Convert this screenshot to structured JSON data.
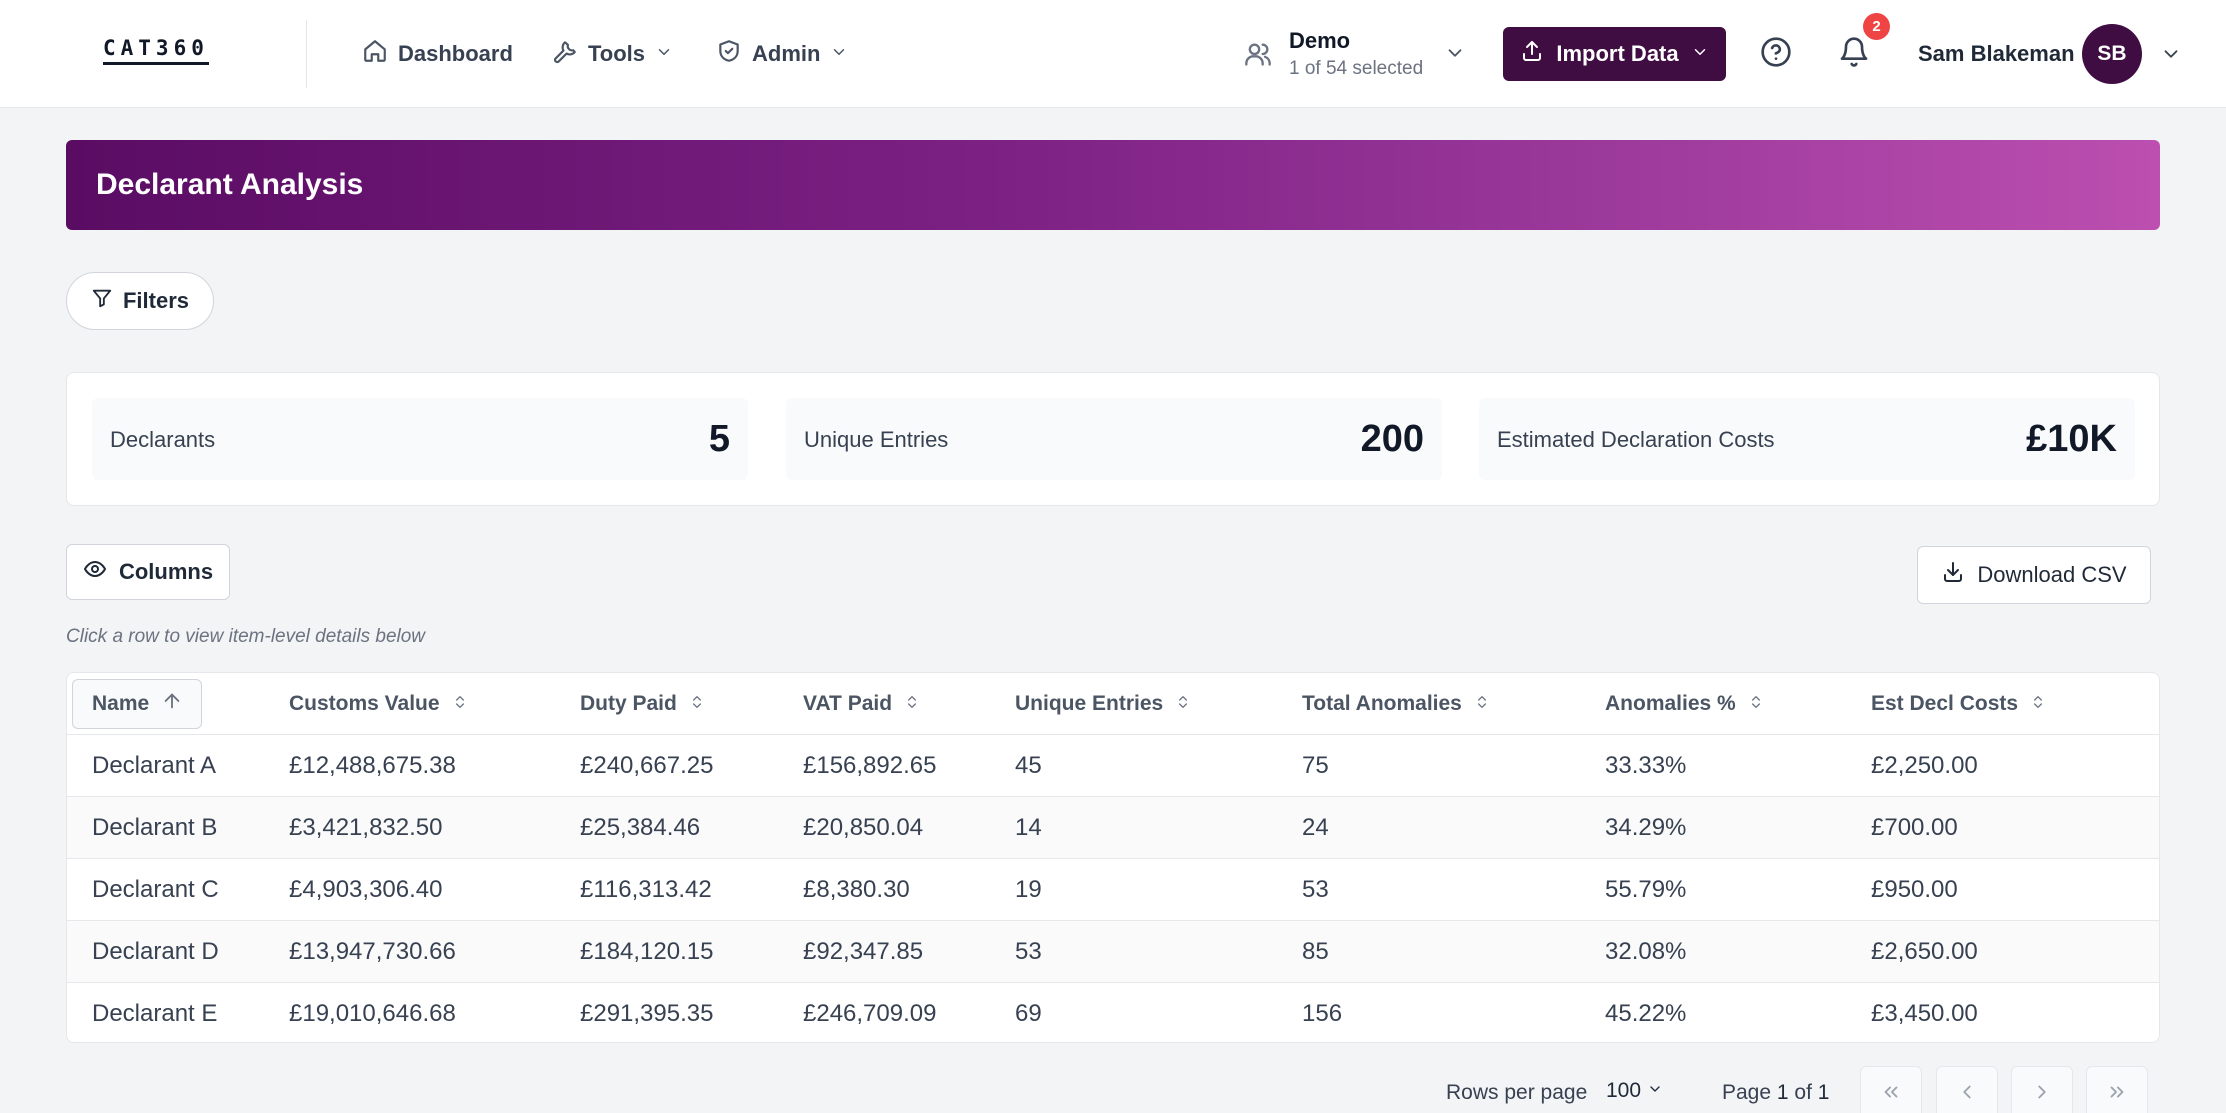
{
  "app": {
    "logo": "CAT360"
  },
  "nav": {
    "dashboard": "Dashboard",
    "tools": "Tools",
    "admin": "Admin"
  },
  "dataset": {
    "name": "Demo",
    "selection": "1 of 54 selected"
  },
  "header": {
    "import_label": "Import Data",
    "notification_count": "2",
    "user_name": "Sam Blakeman",
    "user_initials": "SB"
  },
  "page": {
    "title": "Declarant Analysis",
    "filters_label": "Filters",
    "columns_label": "Columns",
    "download_label": "Download CSV",
    "hint": "Click a row to view item-level details below"
  },
  "stats": [
    {
      "label": "Declarants",
      "value": "5"
    },
    {
      "label": "Unique Entries",
      "value": "200"
    },
    {
      "label": "Estimated Declaration Costs",
      "value": "£10K"
    }
  ],
  "table": {
    "sorted_column": "Name",
    "sort_direction": "ascending",
    "columns": [
      "Name",
      "Customs Value",
      "Duty Paid",
      "VAT Paid",
      "Unique Entries",
      "Total Anomalies",
      "Anomalies %",
      "Est Decl Costs"
    ],
    "rows": [
      [
        "Declarant A",
        "£12,488,675.38",
        "£240,667.25",
        "£156,892.65",
        "45",
        "75",
        "33.33%",
        "£2,250.00"
      ],
      [
        "Declarant B",
        "£3,421,832.50",
        "£25,384.46",
        "£20,850.04",
        "14",
        "24",
        "34.29%",
        "£700.00"
      ],
      [
        "Declarant C",
        "£4,903,306.40",
        "£116,313.42",
        "£8,380.30",
        "19",
        "53",
        "55.79%",
        "£950.00"
      ],
      [
        "Declarant D",
        "£13,947,730.66",
        "£184,120.15",
        "£92,347.85",
        "53",
        "85",
        "32.08%",
        "£2,650.00"
      ],
      [
        "Declarant E",
        "£19,010,646.68",
        "£291,395.35",
        "£246,709.09",
        "69",
        "156",
        "45.22%",
        "£3,450.00"
      ]
    ]
  },
  "pagination": {
    "rows_per_page_label": "Rows per page",
    "rows_per_page": "100",
    "page_word": "Page",
    "current_page": "1",
    "of_word": "of",
    "total_pages": "1"
  },
  "colors": {
    "brand_dark": "#3f0d42",
    "banner_start": "#5a0c63",
    "banner_end": "#bc4fb0",
    "badge": "#ef4444"
  }
}
